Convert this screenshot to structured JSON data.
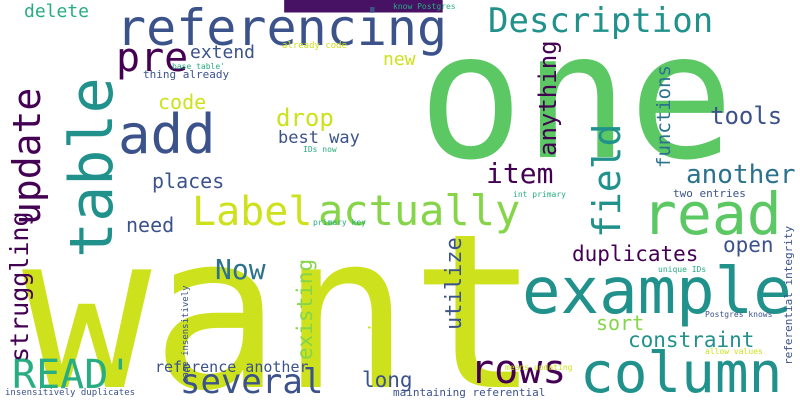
{
  "background": "#ffffff",
  "palette": {
    "yellow_green": "#cde21c",
    "green": "#5bc864",
    "teal": "#21918c",
    "blue": "#3b528b",
    "purple": "#440154",
    "dark_purple": "#471164",
    "light_green": "#86d549",
    "aqua": "#27ad81",
    "grey_blue": "#2c728e"
  },
  "words": [
    {
      "text": "want",
      "color": "#cde21c",
      "rotated": false
    },
    {
      "text": "one",
      "color": "#5bc864",
      "rotated": false
    },
    {
      "text": "p",
      "color": "#471164",
      "rotated": true
    },
    {
      "text": "referencing",
      "color": "#3b528b",
      "rotated": false
    },
    {
      "text": "example",
      "color": "#21918c",
      "rotated": false
    },
    {
      "text": "read",
      "color": "#5bc864",
      "rotated": false
    },
    {
      "text": "table",
      "color": "#21918c",
      "rotated": true
    },
    {
      "text": "column",
      "color": "#21918c",
      "rotated": false
    },
    {
      "text": "Description",
      "color": "#21918c",
      "rotated": false
    },
    {
      "text": "update",
      "color": "#440154",
      "rotated": true
    },
    {
      "text": "add",
      "color": "#3b528b",
      "rotated": false
    },
    {
      "text": "Label",
      "color": "#cde21c",
      "rotated": false
    },
    {
      "text": "actually",
      "color": "#86d549",
      "rotated": false
    },
    {
      "text": "several",
      "color": "#3b528b",
      "rotated": false
    },
    {
      "text": "rows",
      "color": "#440154",
      "rotated": false
    },
    {
      "text": "field",
      "color": "#21918c",
      "rotated": true
    },
    {
      "text": "READ'",
      "color": "#27ad81",
      "rotated": false
    },
    {
      "text": "pre",
      "color": "#440154",
      "rotated": false
    },
    {
      "text": "struggling",
      "color": "#440154",
      "rotated": true
    },
    {
      "text": "Now",
      "color": "#2c728e",
      "rotated": false
    },
    {
      "text": "item",
      "color": "#440154",
      "rotated": false
    },
    {
      "text": "another",
      "color": "#2c728e",
      "rotated": false
    },
    {
      "text": "anything",
      "color": "#440154",
      "rotated": true
    },
    {
      "text": "functions",
      "color": "#2c728e",
      "rotated": true
    },
    {
      "text": "tools",
      "color": "#3b528b",
      "rotated": false
    },
    {
      "text": "duplicates",
      "color": "#440154",
      "rotated": false
    },
    {
      "text": "open",
      "color": "#3b528b",
      "rotated": false
    },
    {
      "text": "constraint",
      "color": "#21918c",
      "rotated": false
    },
    {
      "text": "existing",
      "color": "#86d549",
      "rotated": true
    },
    {
      "text": "recipes",
      "color": "#cde21c",
      "rotated": true
    },
    {
      "text": "utilize",
      "color": "#3b528b",
      "rotated": true
    },
    {
      "text": "sort",
      "color": "#86d549",
      "rotated": false
    },
    {
      "text": "long",
      "color": "#3b528b",
      "rotated": false
    },
    {
      "text": "code",
      "color": "#cde21c",
      "rotated": false
    },
    {
      "text": "drop",
      "color": "#cde21c",
      "rotated": false
    },
    {
      "text": "places",
      "color": "#3b528b",
      "rotated": false
    },
    {
      "text": "need",
      "color": "#3b528b",
      "rotated": false
    },
    {
      "text": "best way",
      "color": "#3b528b",
      "rotated": false
    },
    {
      "text": "extend",
      "color": "#3b528b",
      "rotated": false
    },
    {
      "text": "new",
      "color": "#cde21c",
      "rotated": false
    },
    {
      "text": "delete",
      "color": "#27ad81",
      "rotated": false
    },
    {
      "text": "reference another",
      "color": "#3b528b",
      "rotated": false
    },
    {
      "text": "thing already",
      "color": "#3b528b",
      "rotated": false
    },
    {
      "text": "already code",
      "color": "#cde21c",
      "rotated": false
    },
    {
      "text": "know Postgres",
      "color": "#27ad81",
      "rotated": false
    },
    {
      "text": "base table'",
      "color": "#27ad81",
      "rotated": false
    },
    {
      "text": "IDs now",
      "color": "#27ad81",
      "rotated": false
    },
    {
      "text": "primary key",
      "color": "#27ad81",
      "rotated": false
    },
    {
      "text": "int primary",
      "color": "#27ad81",
      "rotated": false
    },
    {
      "text": "two entries",
      "color": "#3b528b",
      "rotated": false
    },
    {
      "text": "unique IDs",
      "color": "#27ad81",
      "rotated": false
    },
    {
      "text": "referential integrity",
      "color": "#3b528b",
      "rotated": true
    },
    {
      "text": "Postgres knows",
      "color": "#3b528b",
      "rotated": false
    },
    {
      "text": "allow values",
      "color": "#cde21c",
      "rotated": false
    },
    {
      "text": "means updating",
      "color": "#cde21c",
      "rotated": false
    },
    {
      "text": "case insensitively",
      "color": "#3b528b",
      "rotated": true
    },
    {
      "text": "maintaining referential",
      "color": "#3b528b",
      "rotated": false
    },
    {
      "text": "insensitively duplicates",
      "color": "#3b528b",
      "rotated": false
    }
  ]
}
